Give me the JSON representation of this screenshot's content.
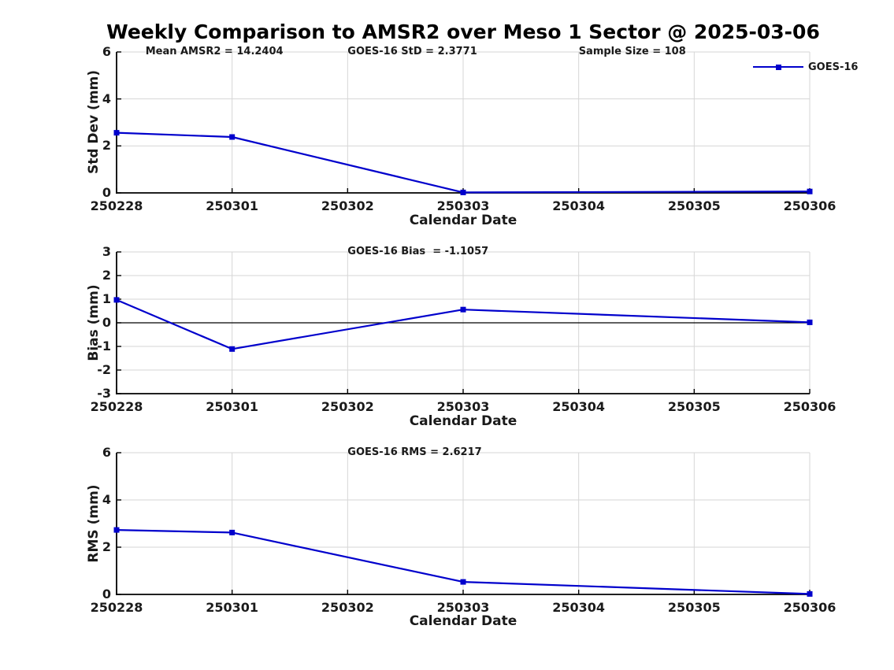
{
  "title": "Weekly Comparison to AMSR2 over Meso 1 Sector @ 2025-03-06",
  "legend": {
    "label": "GOES-16"
  },
  "colors": {
    "line": "#0000cc",
    "grid": "#d6d6d6",
    "axis": "#000000",
    "zero_line": "#000000",
    "text": "#1a1a1a",
    "background": "#ffffff"
  },
  "chart_data": [
    {
      "type": "line",
      "panel": "std-dev",
      "ylabel": "Std Dev (mm)",
      "xlabel": "Calendar Date",
      "ylim": [
        0,
        6
      ],
      "yticks": [
        0,
        2,
        4,
        6
      ],
      "xticks": [
        "250228",
        "250301",
        "250302",
        "250303",
        "250304",
        "250305",
        "250306"
      ],
      "grid": true,
      "legend_position": "top-right-outside",
      "annotations": [
        "Mean AMSR2 = 14.2404",
        "GOES-16 StD = 2.3771",
        "Sample Size = 108"
      ],
      "series": [
        {
          "name": "GOES-16",
          "x": [
            "250228",
            "250301",
            "250303",
            "250306"
          ],
          "y": [
            2.56,
            2.38,
            0.02,
            0.06
          ]
        }
      ],
      "zero_line": false
    },
    {
      "type": "line",
      "panel": "bias",
      "ylabel": "Bias (mm)",
      "xlabel": "Calendar Date",
      "ylim": [
        -3,
        3
      ],
      "yticks": [
        -3,
        -2,
        -1,
        0,
        1,
        2,
        3
      ],
      "xticks": [
        "250228",
        "250301",
        "250302",
        "250303",
        "250304",
        "250305",
        "250306"
      ],
      "grid": true,
      "annotations": [
        "GOES-16 Bias  = -1.1057"
      ],
      "series": [
        {
          "name": "GOES-16",
          "x": [
            "250228",
            "250301",
            "250303",
            "250306"
          ],
          "y": [
            0.97,
            -1.11,
            0.56,
            0.02
          ]
        }
      ],
      "zero_line": true
    },
    {
      "type": "line",
      "panel": "rms",
      "ylabel": "RMS (mm)",
      "xlabel": "Calendar Date",
      "ylim": [
        0,
        6
      ],
      "yticks": [
        0,
        2,
        4,
        6
      ],
      "xticks": [
        "250228",
        "250301",
        "250302",
        "250303",
        "250304",
        "250305",
        "250306"
      ],
      "grid": true,
      "annotations": [
        "GOES-16 RMS = 2.6217"
      ],
      "series": [
        {
          "name": "GOES-16",
          "x": [
            "250228",
            "250301",
            "250303",
            "250306"
          ],
          "y": [
            2.73,
            2.62,
            0.53,
            0.02
          ]
        }
      ],
      "zero_line": false
    }
  ]
}
